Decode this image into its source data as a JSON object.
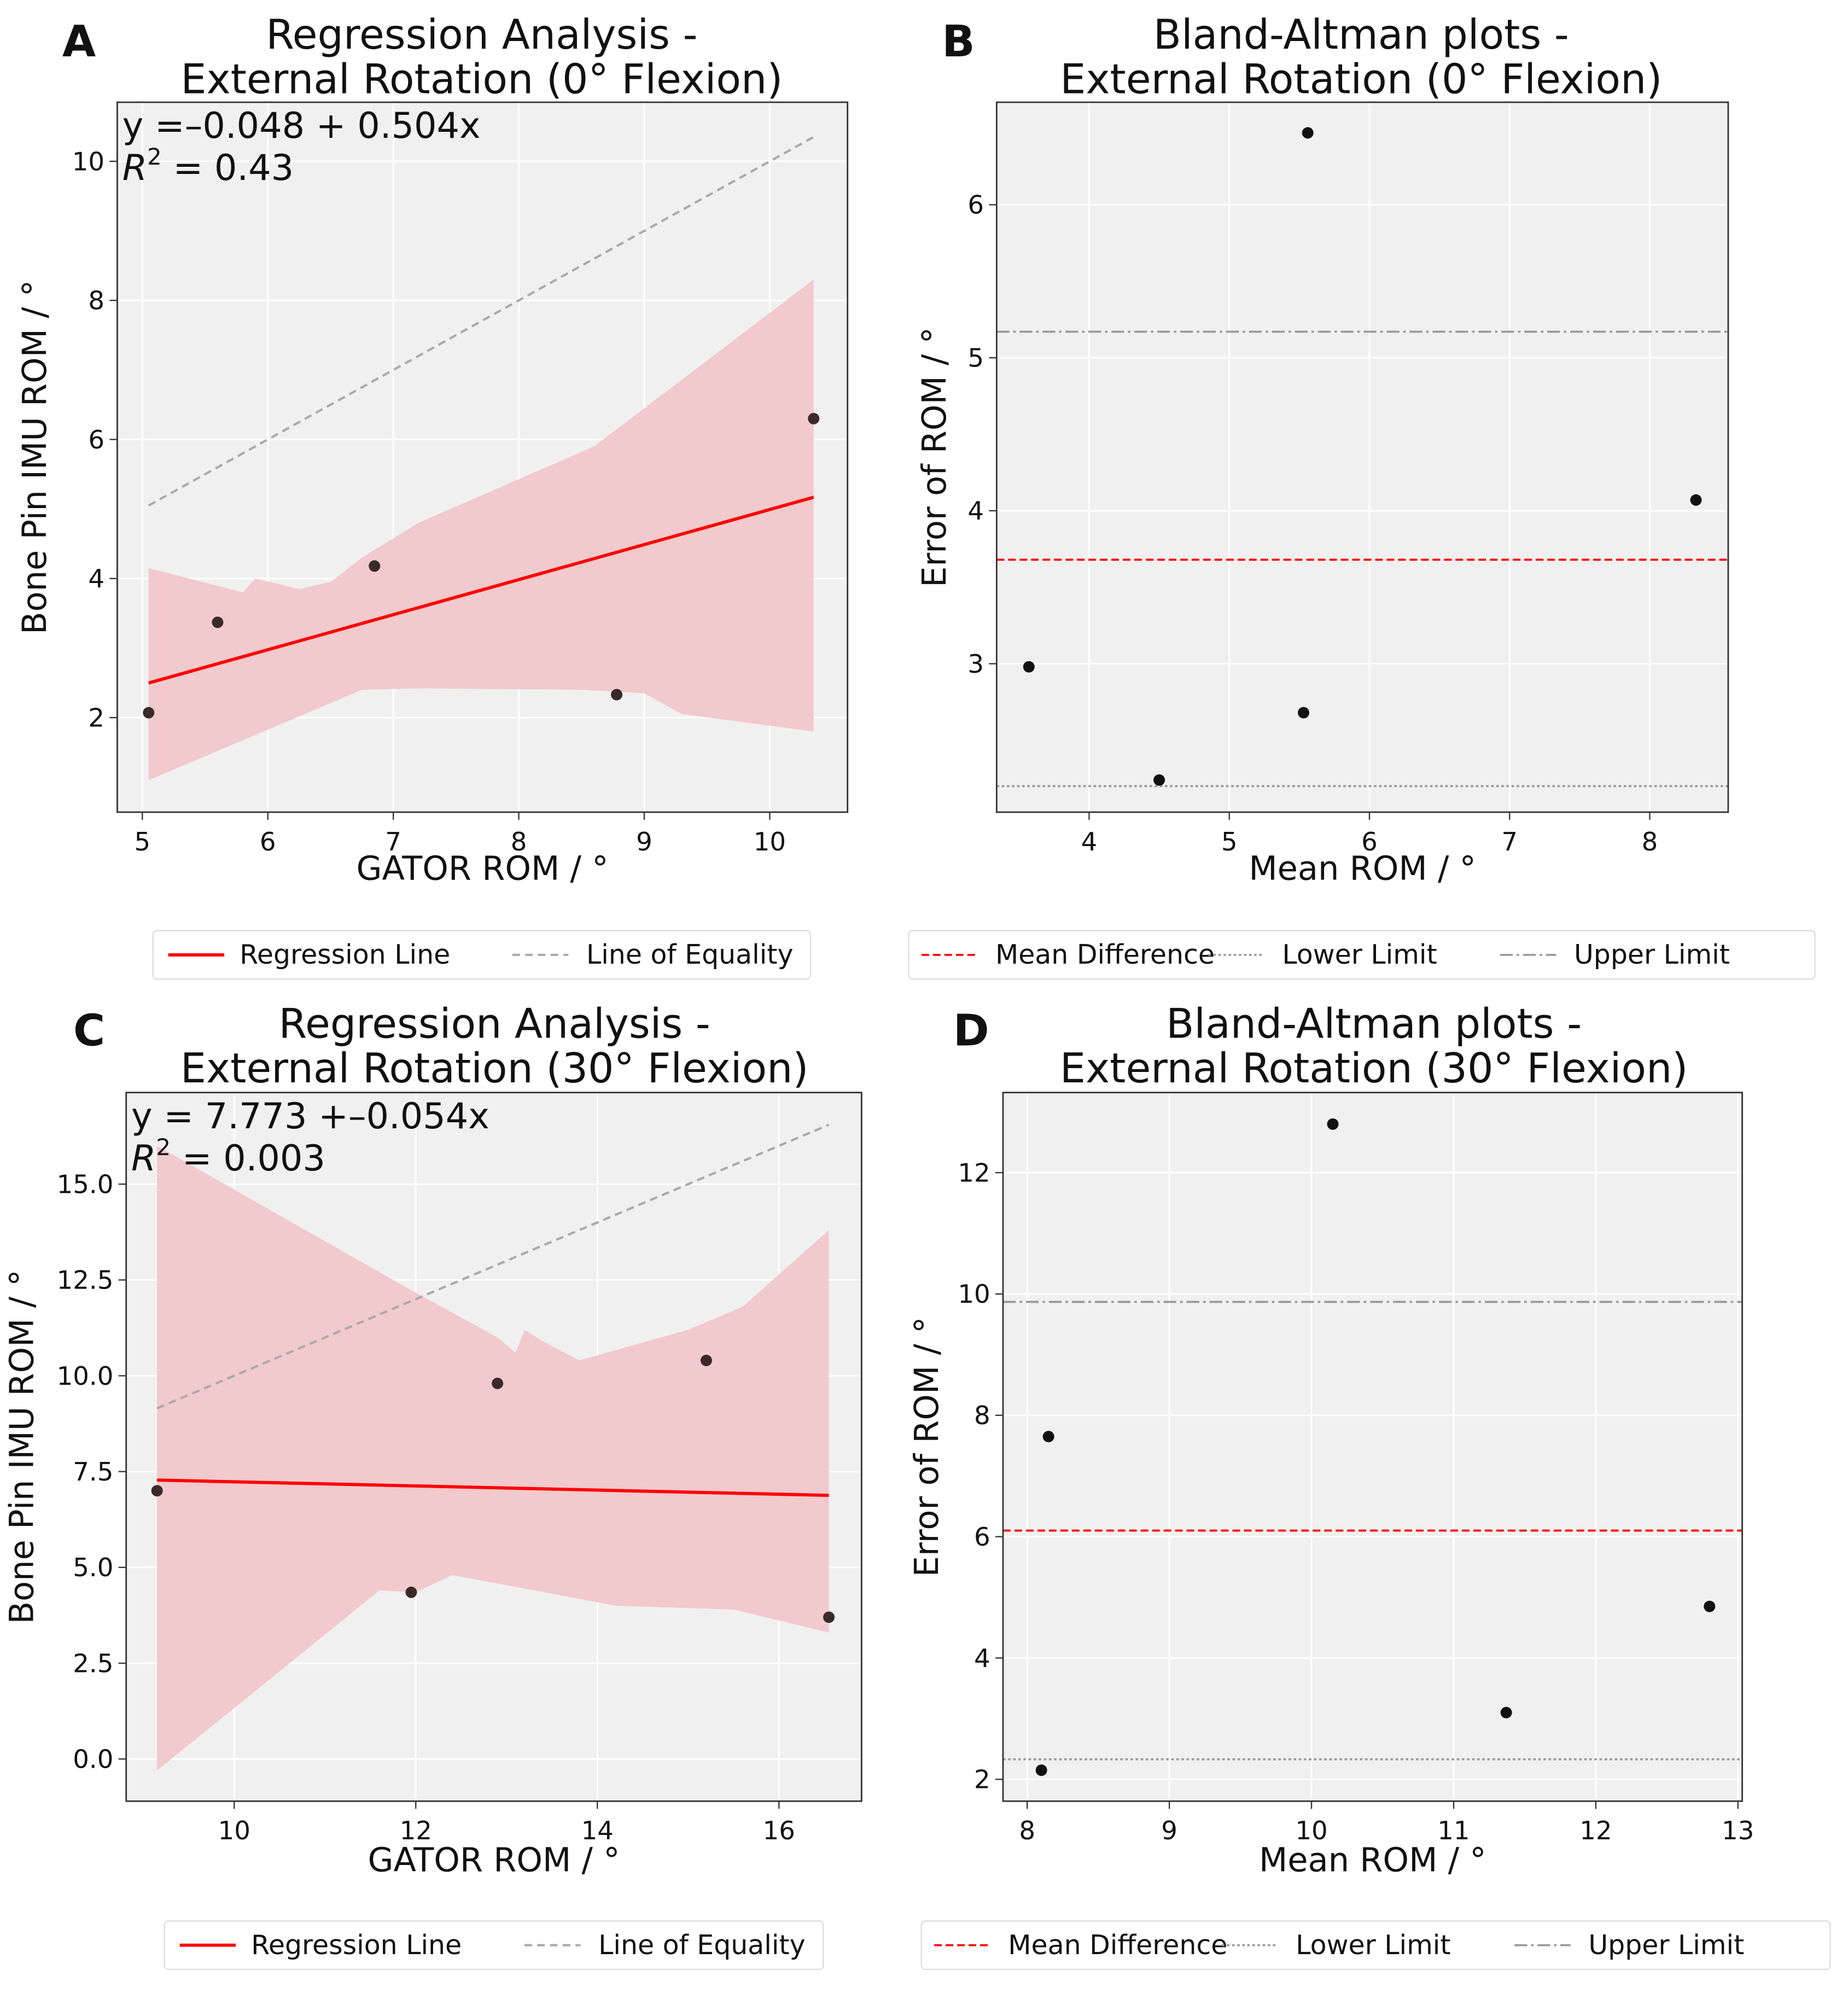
{
  "colors": {
    "regression": "#ff0000",
    "equality": "#aaaaaa",
    "ci_fill": "#f2c9cc",
    "plot_bg": "#f0f0f0",
    "point": "#111111",
    "mean": "#ff0000",
    "lower": "#999999",
    "upper": "#999999"
  },
  "chart_data": [
    {
      "panel": "A",
      "type": "scatter",
      "title": [
        "Regression Analysis -",
        "External Rotation (0° Flexion)"
      ],
      "xlabel": "GATOR ROM / °",
      "ylabel": "Bone Pin IMU ROM / °",
      "xlim": [
        4.8,
        10.62
      ],
      "ylim": [
        0.64,
        10.85
      ],
      "xticks": [
        5,
        6,
        7,
        8,
        9,
        10
      ],
      "yticks": [
        2,
        4,
        6,
        8,
        10
      ],
      "annotation": [
        "y =–0.048 + 0.504x",
        "R",
        "2",
        " = 0.43"
      ],
      "points": [
        [
          5.05,
          2.07
        ],
        [
          5.6,
          3.37
        ],
        [
          6.85,
          4.18
        ],
        [
          8.78,
          2.33
        ],
        [
          10.35,
          6.3
        ]
      ],
      "regression": {
        "intercept": -0.048,
        "slope": 0.504,
        "x": [
          5.05,
          10.35
        ]
      },
      "equality": {
        "x": [
          5.05,
          10.35
        ]
      },
      "ci_upper": [
        [
          5.05,
          4.15
        ],
        [
          5.8,
          3.8
        ],
        [
          5.9,
          4.0
        ],
        [
          6.25,
          3.85
        ],
        [
          6.5,
          3.95
        ],
        [
          6.75,
          4.3
        ],
        [
          7.2,
          4.8
        ],
        [
          8.6,
          5.9
        ],
        [
          10.35,
          8.3
        ]
      ],
      "ci_lower": [
        [
          10.35,
          1.8
        ],
        [
          9.3,
          2.05
        ],
        [
          9.0,
          2.35
        ],
        [
          8.5,
          2.4
        ],
        [
          7.2,
          2.42
        ],
        [
          6.75,
          2.4
        ],
        [
          5.05,
          1.1
        ]
      ],
      "legend": [
        "Regression Line",
        "Line of Equality"
      ]
    },
    {
      "panel": "B",
      "type": "scatter",
      "title": [
        "Bland-Altman plots -",
        "External Rotation (0° Flexion)"
      ],
      "xlabel": "Mean ROM / °",
      "ylabel": "Error of ROM / °",
      "xlim": [
        3.34,
        8.56
      ],
      "ylim": [
        2.03,
        6.67
      ],
      "xticks": [
        4,
        5,
        6,
        7,
        8
      ],
      "yticks": [
        3,
        4,
        5,
        6
      ],
      "points": [
        [
          3.57,
          2.98
        ],
        [
          4.5,
          2.24
        ],
        [
          5.53,
          2.68
        ],
        [
          5.56,
          6.47
        ],
        [
          8.33,
          4.07
        ]
      ],
      "mean_difference": 3.68,
      "lower_limit": 2.2,
      "upper_limit": 5.17,
      "legend": [
        "Mean Difference",
        "Lower Limit",
        "Upper Limit"
      ]
    },
    {
      "panel": "C",
      "type": "scatter",
      "title": [
        "Regression Analysis -",
        "External Rotation (30° Flexion)"
      ],
      "xlabel": "GATOR ROM / °",
      "ylabel": "Bone Pin IMU ROM / °",
      "xlim": [
        8.81,
        16.91
      ],
      "ylim": [
        -1.1,
        17.39
      ],
      "xticks": [
        10,
        12,
        14,
        16
      ],
      "yticks": [
        0.0,
        2.5,
        5.0,
        7.5,
        10.0,
        12.5,
        15.0
      ],
      "ytick_labels": [
        "0.0",
        "2.5",
        "5.0",
        "7.5",
        "10.0",
        "12.5",
        "15.0"
      ],
      "annotation": [
        "y = 7.773 +–0.054x",
        "R",
        "2",
        " = 0.003"
      ],
      "points": [
        [
          9.15,
          7.0
        ],
        [
          11.95,
          4.35
        ],
        [
          12.9,
          9.8
        ],
        [
          15.2,
          10.4
        ],
        [
          16.55,
          3.7
        ]
      ],
      "regression": {
        "intercept": 7.773,
        "slope": -0.054,
        "x": [
          9.15,
          16.55
        ]
      },
      "equality": {
        "x": [
          9.15,
          16.55
        ]
      },
      "ci_upper": [
        [
          9.15,
          16.0
        ],
        [
          11.9,
          12.3
        ],
        [
          12.9,
          11.0
        ],
        [
          13.1,
          10.6
        ],
        [
          13.2,
          11.2
        ],
        [
          13.4,
          10.9
        ],
        [
          13.8,
          10.4
        ],
        [
          15.0,
          11.2
        ],
        [
          15.6,
          11.8
        ],
        [
          16.55,
          13.8
        ]
      ],
      "ci_lower": [
        [
          16.55,
          3.3
        ],
        [
          15.5,
          3.9
        ],
        [
          14.2,
          4.0
        ],
        [
          12.4,
          4.8
        ],
        [
          12.0,
          4.35
        ],
        [
          11.6,
          4.4
        ],
        [
          9.15,
          -0.3
        ]
      ],
      "legend": [
        "Regression Line",
        "Line of Equality"
      ]
    },
    {
      "panel": "D",
      "type": "scatter",
      "title": [
        "Bland-Altman plots -",
        "External Rotation (30° Flexion)"
      ],
      "xlabel": "Mean ROM / °",
      "ylabel": "Error of ROM / °",
      "xlim": [
        7.83,
        13.03
      ],
      "ylim": [
        1.64,
        13.32
      ],
      "xticks": [
        8,
        9,
        10,
        11,
        12,
        13
      ],
      "yticks": [
        2,
        4,
        6,
        8,
        10,
        12
      ],
      "points": [
        [
          8.1,
          2.15
        ],
        [
          8.15,
          7.65
        ],
        [
          10.15,
          12.8
        ],
        [
          11.37,
          3.1
        ],
        [
          12.8,
          4.85
        ]
      ],
      "mean_difference": 6.1,
      "lower_limit": 2.33,
      "upper_limit": 9.87,
      "legend": [
        "Mean Difference",
        "Lower Limit",
        "Upper Limit"
      ]
    }
  ]
}
